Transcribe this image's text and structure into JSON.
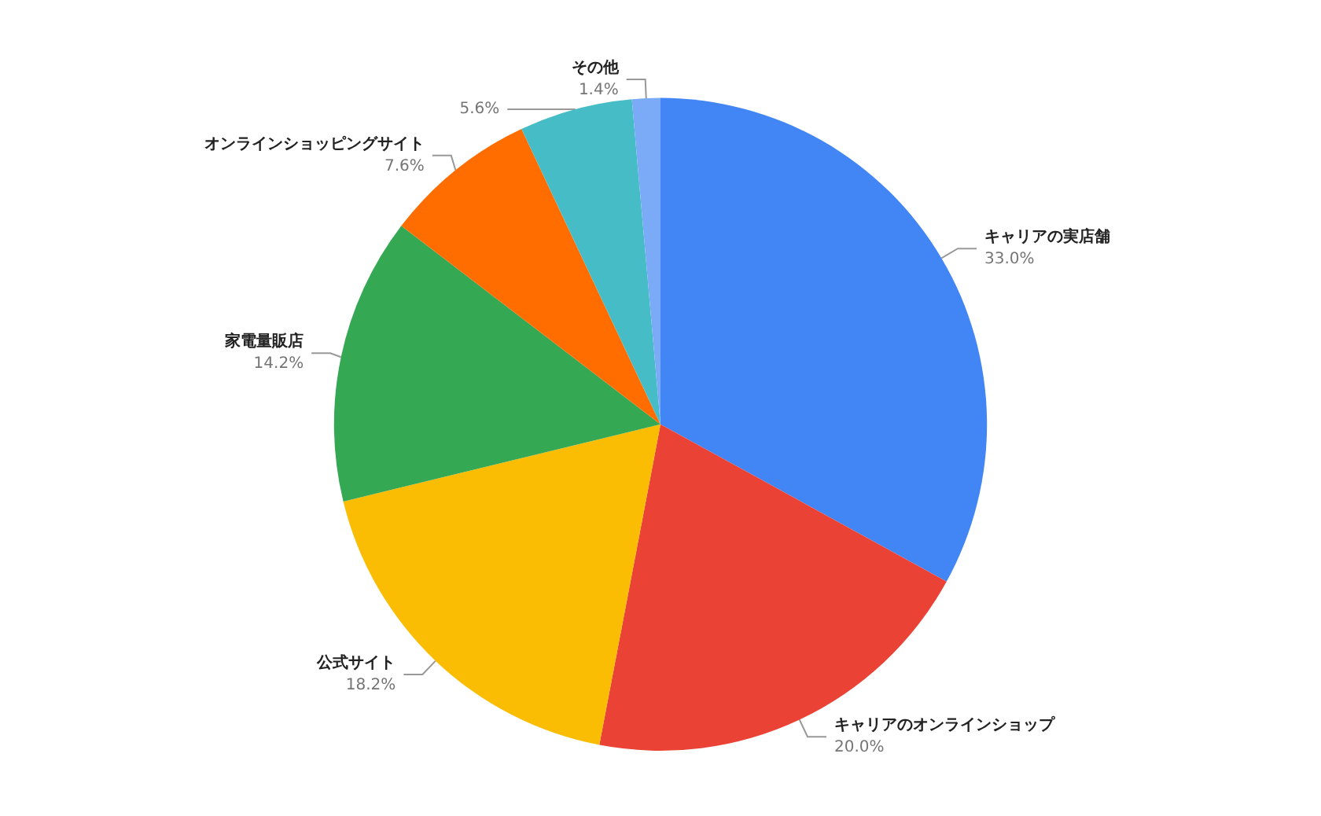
{
  "chart_data": {
    "type": "pie",
    "categories": [
      "キャリアの実店舗",
      "キャリアのオンラインショップ",
      "公式サイト",
      "家電量販店",
      "オンラインショッピングサイト",
      null,
      "その他"
    ],
    "values": [
      33.0,
      20.0,
      18.2,
      14.2,
      7.6,
      5.6,
      1.4
    ],
    "colors": [
      "#4285f4",
      "#ea4335",
      "#fbbc04",
      "#34a853",
      "#ff6d01",
      "#46bdc6",
      "#7baaf7"
    ],
    "value_labels": [
      "33.0%",
      "20.0%",
      "18.2%",
      "14.2%",
      "7.6%",
      "5.6%",
      "1.4%"
    ],
    "legend": false
  }
}
